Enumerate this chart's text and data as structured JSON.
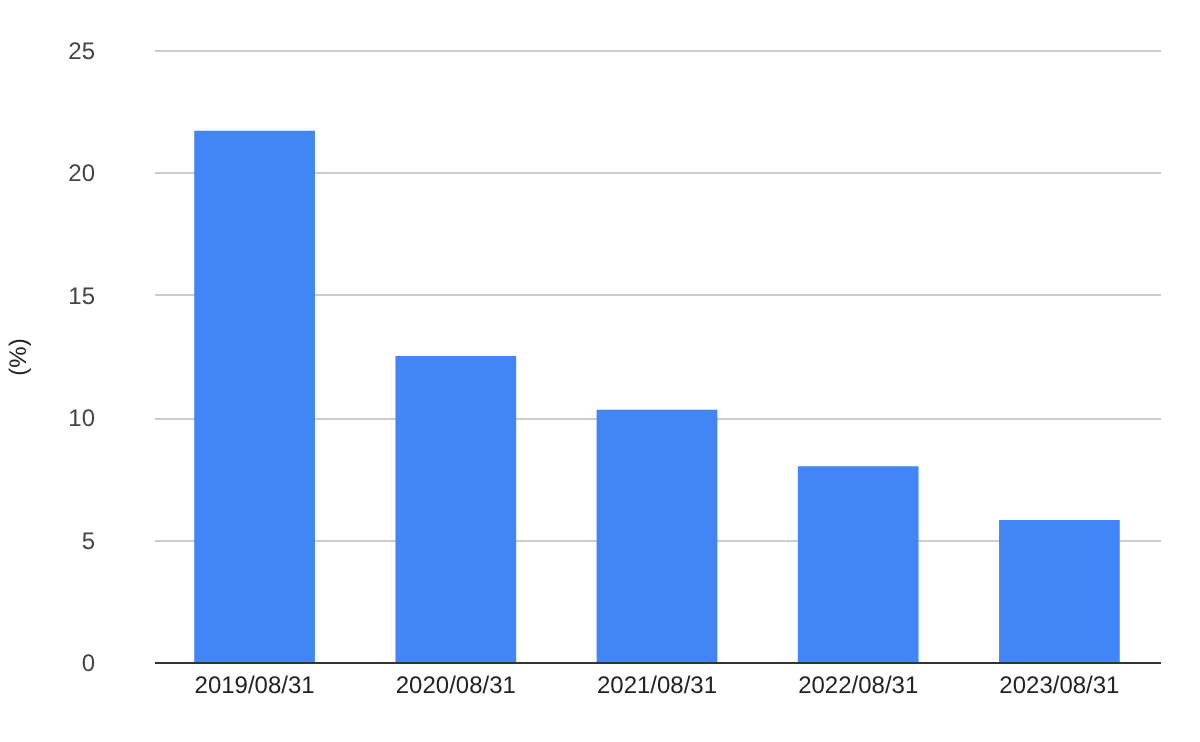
{
  "chart_data": {
    "type": "bar",
    "ylabel": "(%)",
    "categories": [
      "2019/08/31",
      "2020/08/31",
      "2021/08/31",
      "2022/08/31",
      "2023/08/31"
    ],
    "values": [
      21.7,
      12.5,
      10.3,
      8.0,
      5.8
    ],
    "color": "#4285f4",
    "ylim": [
      0,
      25
    ],
    "yticks": [
      0,
      5,
      10,
      15,
      20,
      25
    ],
    "grid": true
  }
}
